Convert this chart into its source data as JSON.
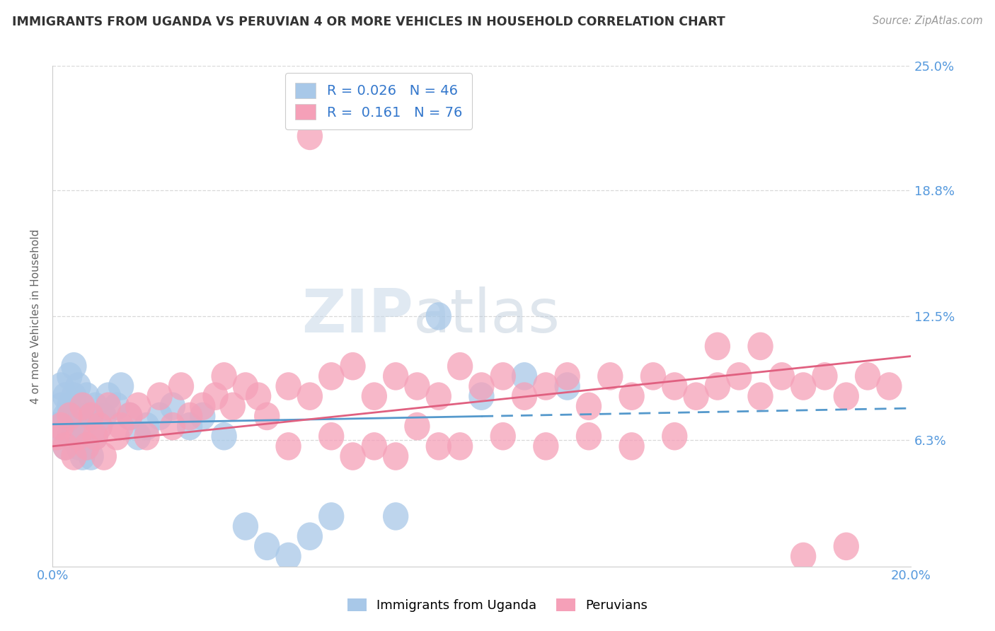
{
  "title": "IMMIGRANTS FROM UGANDA VS PERUVIAN 4 OR MORE VEHICLES IN HOUSEHOLD CORRELATION CHART",
  "source": "Source: ZipAtlas.com",
  "ylabel": "4 or more Vehicles in Household",
  "xlim": [
    0.0,
    0.2
  ],
  "ylim": [
    0.0,
    0.25
  ],
  "ytick_labels": [
    "6.3%",
    "12.5%",
    "18.8%",
    "25.0%"
  ],
  "ytick_values": [
    0.063,
    0.125,
    0.188,
    0.25
  ],
  "r_uganda": 0.026,
  "n_uganda": 46,
  "r_peru": 0.161,
  "n_peru": 76,
  "uganda_color": "#a8c8e8",
  "peru_color": "#f5a0b8",
  "uganda_line_color": "#5599cc",
  "peru_line_color": "#e06080",
  "legend_label_uganda": "Immigrants from Uganda",
  "legend_label_peru": "Peruvians",
  "watermark_zip": "ZIP",
  "watermark_atlas": "atlas",
  "background_color": "#ffffff",
  "grid_color": "#d8d8d8",
  "title_color": "#333333",
  "axis_label_color": "#666666",
  "tick_color": "#5599dd",
  "uganda_scatter_x": [
    0.001,
    0.002,
    0.002,
    0.003,
    0.003,
    0.003,
    0.004,
    0.004,
    0.004,
    0.005,
    0.005,
    0.005,
    0.006,
    0.006,
    0.006,
    0.007,
    0.007,
    0.008,
    0.008,
    0.009,
    0.009,
    0.01,
    0.01,
    0.011,
    0.012,
    0.013,
    0.015,
    0.016,
    0.018,
    0.02,
    0.022,
    0.025,
    0.028,
    0.032,
    0.035,
    0.04,
    0.045,
    0.05,
    0.055,
    0.06,
    0.065,
    0.08,
    0.09,
    0.1,
    0.11,
    0.12
  ],
  "uganda_scatter_y": [
    0.07,
    0.08,
    0.09,
    0.06,
    0.075,
    0.085,
    0.065,
    0.08,
    0.095,
    0.07,
    0.085,
    0.1,
    0.06,
    0.075,
    0.09,
    0.055,
    0.07,
    0.085,
    0.06,
    0.075,
    0.055,
    0.065,
    0.08,
    0.07,
    0.075,
    0.085,
    0.08,
    0.09,
    0.075,
    0.065,
    0.07,
    0.075,
    0.08,
    0.07,
    0.075,
    0.065,
    0.02,
    0.01,
    0.005,
    0.015,
    0.025,
    0.025,
    0.125,
    0.085,
    0.095,
    0.09
  ],
  "peru_scatter_x": [
    0.001,
    0.002,
    0.003,
    0.004,
    0.005,
    0.006,
    0.007,
    0.008,
    0.009,
    0.01,
    0.011,
    0.012,
    0.013,
    0.015,
    0.016,
    0.018,
    0.02,
    0.022,
    0.025,
    0.028,
    0.03,
    0.032,
    0.035,
    0.038,
    0.04,
    0.042,
    0.045,
    0.048,
    0.05,
    0.055,
    0.06,
    0.065,
    0.07,
    0.075,
    0.08,
    0.085,
    0.09,
    0.095,
    0.1,
    0.105,
    0.11,
    0.115,
    0.12,
    0.125,
    0.13,
    0.135,
    0.14,
    0.145,
    0.15,
    0.155,
    0.16,
    0.165,
    0.17,
    0.175,
    0.18,
    0.185,
    0.19,
    0.195,
    0.155,
    0.165,
    0.055,
    0.065,
    0.075,
    0.085,
    0.095,
    0.105,
    0.115,
    0.125,
    0.135,
    0.145,
    0.175,
    0.185,
    0.06,
    0.07,
    0.08,
    0.09
  ],
  "peru_scatter_y": [
    0.065,
    0.07,
    0.06,
    0.075,
    0.055,
    0.065,
    0.08,
    0.06,
    0.075,
    0.065,
    0.07,
    0.055,
    0.08,
    0.065,
    0.07,
    0.075,
    0.08,
    0.065,
    0.085,
    0.07,
    0.09,
    0.075,
    0.08,
    0.085,
    0.095,
    0.08,
    0.09,
    0.085,
    0.075,
    0.09,
    0.085,
    0.095,
    0.1,
    0.085,
    0.095,
    0.09,
    0.085,
    0.1,
    0.09,
    0.095,
    0.085,
    0.09,
    0.095,
    0.08,
    0.095,
    0.085,
    0.095,
    0.09,
    0.085,
    0.09,
    0.095,
    0.085,
    0.095,
    0.09,
    0.095,
    0.085,
    0.095,
    0.09,
    0.11,
    0.11,
    0.06,
    0.065,
    0.06,
    0.07,
    0.06,
    0.065,
    0.06,
    0.065,
    0.06,
    0.065,
    0.005,
    0.01,
    0.215,
    0.055,
    0.055,
    0.06
  ],
  "ug_trendline_x0": 0.0,
  "ug_trendline_y0": 0.071,
  "ug_trendline_x1": 0.2,
  "ug_trendline_y1": 0.079,
  "pe_trendline_x0": 0.0,
  "pe_trendline_y0": 0.06,
  "pe_trendline_x1": 0.2,
  "pe_trendline_y1": 0.105
}
